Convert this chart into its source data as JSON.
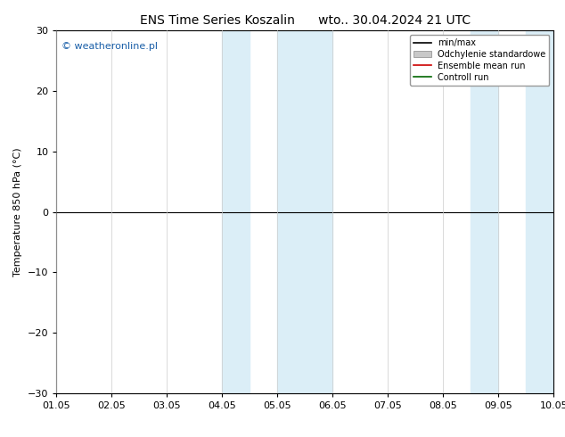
{
  "title": "ENS Time Series Koszalin      wto.. 30.04.2024 21 UTC",
  "ylabel": "Temperature 850 hPa (°C)",
  "xlabel": "",
  "ylim": [
    -30,
    30
  ],
  "yticks": [
    -30,
    -20,
    -10,
    0,
    10,
    20,
    30
  ],
  "xlim": [
    0,
    9
  ],
  "xtick_labels": [
    "01.05",
    "02.05",
    "03.05",
    "04.05",
    "05.05",
    "06.05",
    "07.05",
    "08.05",
    "09.05",
    "10.05"
  ],
  "xtick_positions": [
    0,
    1,
    2,
    3,
    4,
    5,
    6,
    7,
    8,
    9
  ],
  "shaded_bands": [
    {
      "x_start": 3.0,
      "x_end": 3.5
    },
    {
      "x_start": 4.0,
      "x_end": 5.0
    },
    {
      "x_start": 7.5,
      "x_end": 8.0
    },
    {
      "x_start": 8.5,
      "x_end": 9.0
    }
  ],
  "shaded_color": "#dbeef7",
  "hline_y": 0,
  "hline_color": "#000000",
  "background_color": "#ffffff",
  "plot_bg_color": "#ffffff",
  "watermark_text": "© weatheronline.pl",
  "watermark_color": "#1a5fa8",
  "legend_entries": [
    {
      "label": "min/max",
      "color": "#000000",
      "lw": 1.2
    },
    {
      "label": "Odchylenie standardowe",
      "color": "#c8c8c8",
      "lw": 6
    },
    {
      "label": "Ensemble mean run",
      "color": "#cc0000",
      "lw": 1.2
    },
    {
      "label": "Controll run",
      "color": "#006600",
      "lw": 1.2
    }
  ],
  "title_fontsize": 10,
  "axis_fontsize": 8,
  "tick_fontsize": 8,
  "watermark_fontsize": 8,
  "figsize": [
    6.34,
    4.9
  ],
  "dpi": 100
}
